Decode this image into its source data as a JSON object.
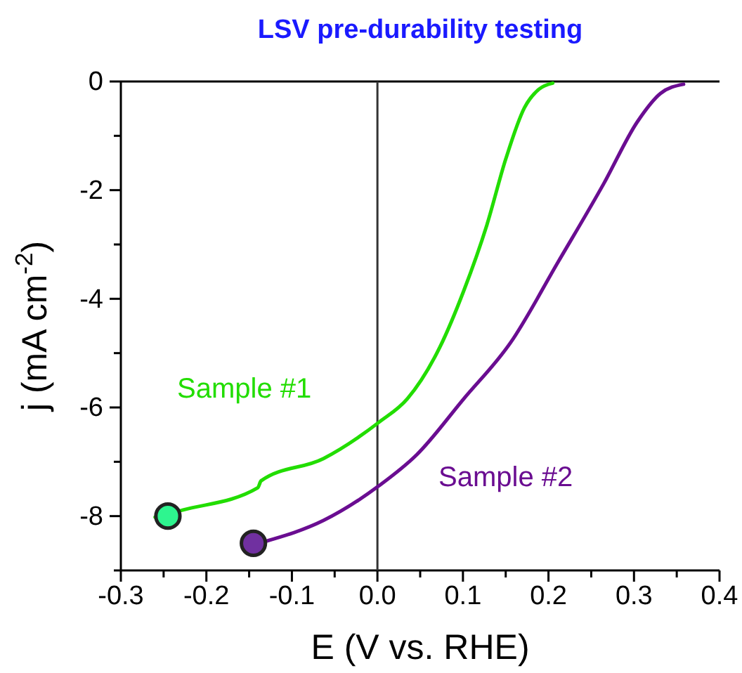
{
  "chart_data": {
    "type": "line",
    "title": "LSV pre-durability testing",
    "xlabel": "E (V vs. RHE)",
    "ylabel": "j (mA cm$^{-2}$)",
    "xlim": [
      -0.3,
      0.4
    ],
    "ylim": [
      -9,
      0
    ],
    "xticks": [
      -0.3,
      {
        "value": -0.25,
        "label": null
      },
      -0.2,
      {
        "value": -0.15,
        "label": null
      },
      -0.1,
      {
        "value": -0.05,
        "label": null
      },
      {
        "value": 0,
        "label": "0.0"
      },
      {
        "value": 0.05,
        "label": null
      },
      0.1,
      {
        "value": 0.15,
        "label": null
      },
      0.2,
      {
        "value": 0.25,
        "label": null
      },
      0.3,
      {
        "value": 0.35,
        "label": null
      },
      0.4
    ],
    "yticks": [
      {
        "value": -9,
        "label": null
      },
      -8,
      {
        "value": -7,
        "label": null
      },
      -6,
      {
        "value": -5,
        "label": null
      },
      -4,
      {
        "value": -3,
        "label": null
      },
      -2,
      {
        "value": -1,
        "label": null
      },
      0
    ],
    "grid": false,
    "legend": false,
    "marker": "none",
    "line_style": "solid",
    "ref_lines": [
      {
        "axis": "x",
        "value": 0,
        "color": "#333333"
      }
    ],
    "series": [
      {
        "name": "Sample #1",
        "color": "#22dd00",
        "x": [
          -0.26,
          -0.228,
          -0.14,
          -0.136,
          -0.063,
          0.002,
          0.035,
          0.073,
          0.101,
          0.128,
          0.15,
          0.172,
          0.189,
          0.205
        ],
        "values": [
          -8.02,
          -7.89,
          -7.48,
          -7.35,
          -6.94,
          -6.27,
          -5.84,
          -4.89,
          -3.85,
          -2.64,
          -1.43,
          -0.48,
          -0.14,
          -0.03
        ]
      },
      {
        "name": "Sample #2",
        "color": "#6a0d91",
        "x": [
          -0.132,
          -0.063,
          0.002,
          0.046,
          0.101,
          0.156,
          0.211,
          0.265,
          0.304,
          0.331,
          0.358
        ],
        "values": [
          -8.47,
          -8.08,
          -7.44,
          -6.87,
          -5.84,
          -4.8,
          -3.33,
          -1.87,
          -0.74,
          -0.22,
          -0.05
        ]
      },
      {
        "type": "scatter",
        "marker": "circle",
        "color": "#2ef58f",
        "x": [
          -0.245
        ],
        "values": [
          -8.0
        ]
      },
      {
        "type": "scatter",
        "marker": "circle",
        "color": "#7030a0",
        "x": [
          -0.145
        ],
        "values": [
          -8.5
        ]
      }
    ]
  }
}
